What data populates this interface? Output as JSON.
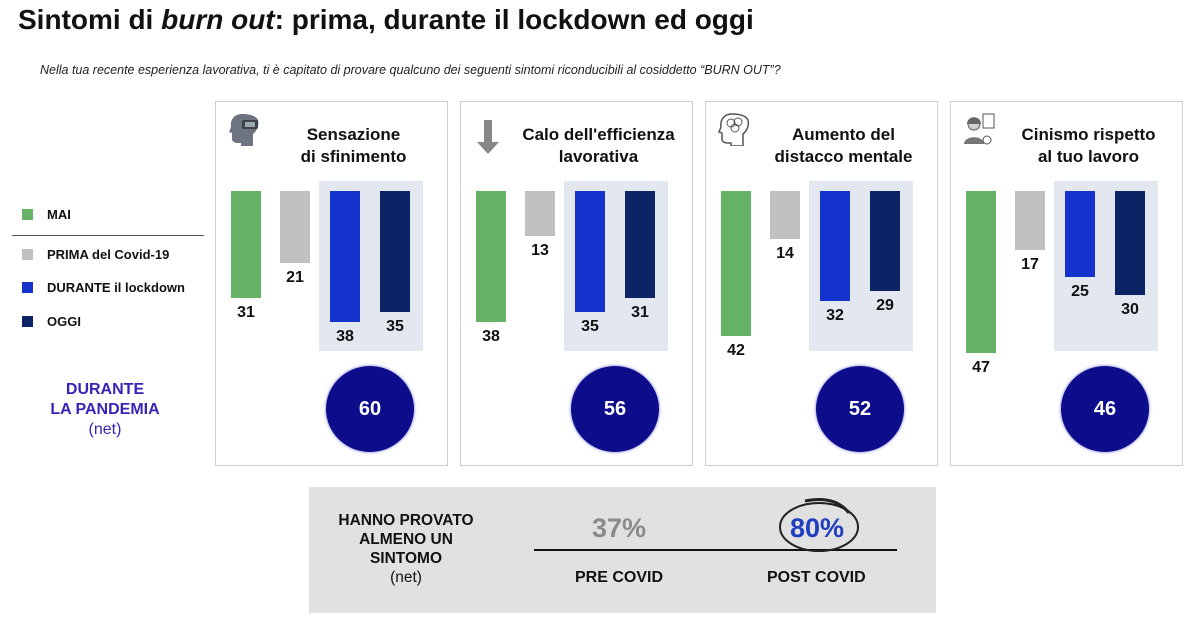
{
  "title_pre": "Sintomi di ",
  "title_em": "burn out",
  "title_post": ": prima, durante il lockdown ed oggi",
  "subtitle": "Nella tua recente esperienza lavorativa, ti è capitato di provare qualcuno dei seguenti sintomi riconducibili al cosiddetto “BURN OUT”?",
  "legend": [
    {
      "label": "MAI",
      "color": "#66b266"
    },
    {
      "label": "PRIMA del Covid-19",
      "color": "#c0c0c0"
    },
    {
      "label": "DURANTE il lockdown",
      "color": "#1433cc"
    },
    {
      "label": "OGGI",
      "color": "#0c2466"
    }
  ],
  "pandemic": {
    "line1": "DURANTE",
    "line2": "LA PANDEMIA",
    "net": "(net)"
  },
  "chart_data": {
    "type": "bar",
    "series_names": [
      "MAI",
      "PRIMA del Covid-19",
      "DURANTE il lockdown",
      "OGGI"
    ],
    "panels": [
      {
        "title1": "Sensazione",
        "title2": "di sfinimento",
        "icon": "head-vr-icon",
        "values": [
          31,
          21,
          38,
          35
        ],
        "net": 60
      },
      {
        "title1": "Calo dell'efficienza",
        "title2": "lavorativa",
        "icon": "arrow-down-icon",
        "values": [
          38,
          13,
          35,
          31
        ],
        "net": 56
      },
      {
        "title1": "Aumento del",
        "title2": "distacco mentale",
        "icon": "brain-head-icon",
        "values": [
          42,
          14,
          32,
          29
        ],
        "net": 52
      },
      {
        "title1": "Cinismo rispetto",
        "title2": "al tuo lavoro",
        "icon": "worker-icon",
        "values": [
          47,
          17,
          25,
          30
        ],
        "net": 46
      }
    ]
  },
  "summary": {
    "label1": "HANNO PROVATO",
    "label2": "ALMENO UN",
    "label3": "SINTOMO",
    "net": "(net)",
    "pre_value": "37%",
    "pre_label": "PRE COVID",
    "post_value": "80%",
    "post_label": "POST COVID"
  }
}
